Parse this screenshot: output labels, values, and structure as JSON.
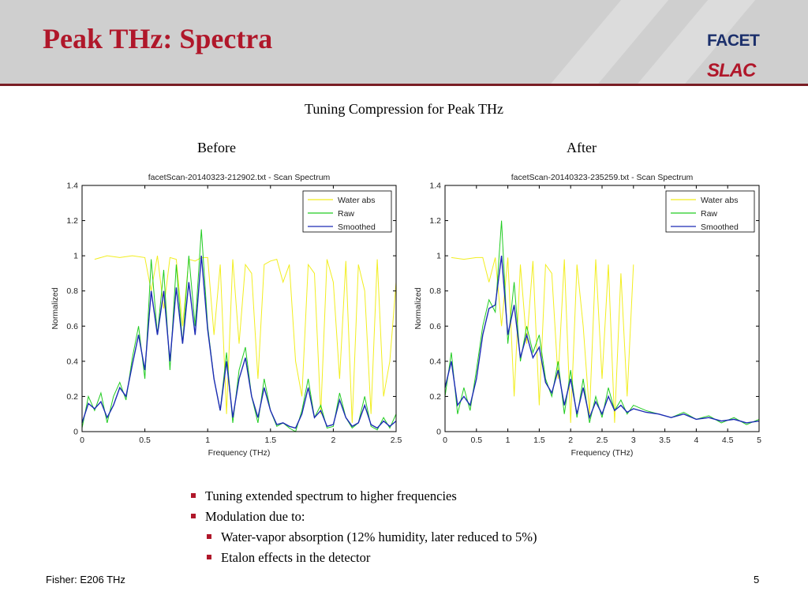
{
  "slide": {
    "title": "Peak THz: Spectra",
    "logo_top": "FACET",
    "logo_bottom": "SLAC",
    "subtitle": "Tuning Compression for Peak THz",
    "label_before": "Before",
    "label_after": "After",
    "bullets": [
      "Tuning extended spectrum to higher frequencies",
      "Modulation due to:"
    ],
    "sub_bullets": [
      "Water-vapor absorption (12% humidity, later reduced to 5%)",
      "Etalon effects in the detector"
    ],
    "footer_left": "Fisher: E206 THz",
    "page_number": "5",
    "colors": {
      "title": "#b0172a",
      "rule": "#7a1e24",
      "water": "#f2ee1f",
      "raw": "#22cc22",
      "smoothed": "#1c2bb5"
    }
  },
  "chart_data": [
    {
      "type": "line",
      "title": "facetScan-20140323-212902.txt - Scan Spectrum",
      "xlabel": "Frequency (THz)",
      "ylabel": "Normalized",
      "xlim": [
        0,
        2.5
      ],
      "ylim": [
        0,
        1.4
      ],
      "xticks": [
        0,
        0.5,
        1,
        1.5,
        2,
        2.5
      ],
      "xtick_labels": [
        "0",
        "0.5",
        "1",
        "1.5",
        "2",
        "2.5"
      ],
      "yticks": [
        0,
        0.2,
        0.4,
        0.6,
        0.8,
        1,
        1.2,
        1.4
      ],
      "ytick_labels": [
        "0",
        "0.2",
        "0.4",
        "0.6",
        "0.8",
        "1",
        "1.2",
        "1.4"
      ],
      "legend_position": "top-right",
      "series": [
        {
          "name": "Water abs",
          "x": [
            0.1,
            0.2,
            0.3,
            0.4,
            0.5,
            0.55,
            0.6,
            0.65,
            0.7,
            0.75,
            0.8,
            0.85,
            0.9,
            0.95,
            1.0,
            1.05,
            1.1,
            1.15,
            1.2,
            1.25,
            1.3,
            1.35,
            1.4,
            1.45,
            1.5,
            1.55,
            1.6,
            1.65,
            1.7,
            1.75,
            1.8,
            1.85,
            1.9,
            1.95,
            2.0,
            2.05,
            2.1,
            2.15,
            2.2,
            2.25,
            2.3,
            2.35,
            2.4,
            2.45,
            2.5
          ],
          "y": [
            0.98,
            1.0,
            0.99,
            1.0,
            0.99,
            0.8,
            1.0,
            0.7,
            0.99,
            0.98,
            0.6,
            0.98,
            0.97,
            0.99,
            0.99,
            0.55,
            0.95,
            0.1,
            0.98,
            0.5,
            0.95,
            0.9,
            0.3,
            0.95,
            0.97,
            0.98,
            0.85,
            0.95,
            0.4,
            0.2,
            0.95,
            0.9,
            0.1,
            0.98,
            0.85,
            0.3,
            0.97,
            0.05,
            0.95,
            0.8,
            0.1,
            0.98,
            0.2,
            0.4,
            0.85
          ]
        },
        {
          "name": "Raw",
          "x": [
            0.0,
            0.05,
            0.1,
            0.15,
            0.2,
            0.25,
            0.3,
            0.35,
            0.4,
            0.45,
            0.5,
            0.55,
            0.6,
            0.65,
            0.7,
            0.75,
            0.8,
            0.85,
            0.9,
            0.95,
            1.0,
            1.05,
            1.1,
            1.15,
            1.2,
            1.25,
            1.3,
            1.35,
            1.4,
            1.45,
            1.5,
            1.55,
            1.6,
            1.65,
            1.7,
            1.75,
            1.8,
            1.85,
            1.9,
            1.95,
            2.0,
            2.05,
            2.1,
            2.15,
            2.2,
            2.25,
            2.3,
            2.35,
            2.4,
            2.45,
            2.5
          ],
          "y": [
            0.02,
            0.2,
            0.12,
            0.22,
            0.05,
            0.2,
            0.28,
            0.18,
            0.42,
            0.6,
            0.3,
            0.98,
            0.55,
            0.92,
            0.35,
            0.95,
            0.5,
            1.0,
            0.6,
            1.15,
            0.6,
            0.3,
            0.12,
            0.45,
            0.05,
            0.35,
            0.48,
            0.2,
            0.05,
            0.3,
            0.12,
            0.03,
            0.05,
            0.02,
            0.0,
            0.12,
            0.3,
            0.08,
            0.15,
            0.02,
            0.03,
            0.22,
            0.08,
            0.02,
            0.05,
            0.2,
            0.03,
            0.01,
            0.08,
            0.02,
            0.1
          ]
        },
        {
          "name": "Smoothed",
          "x": [
            0.0,
            0.05,
            0.1,
            0.15,
            0.2,
            0.25,
            0.3,
            0.35,
            0.4,
            0.45,
            0.5,
            0.55,
            0.6,
            0.65,
            0.7,
            0.75,
            0.8,
            0.85,
            0.9,
            0.95,
            1.0,
            1.05,
            1.1,
            1.15,
            1.2,
            1.25,
            1.3,
            1.35,
            1.4,
            1.45,
            1.5,
            1.55,
            1.6,
            1.65,
            1.7,
            1.75,
            1.8,
            1.85,
            1.9,
            1.95,
            2.0,
            2.05,
            2.1,
            2.15,
            2.2,
            2.25,
            2.3,
            2.35,
            2.4,
            2.45,
            2.5
          ],
          "y": [
            0.05,
            0.16,
            0.13,
            0.17,
            0.08,
            0.15,
            0.25,
            0.2,
            0.38,
            0.55,
            0.35,
            0.8,
            0.55,
            0.8,
            0.4,
            0.82,
            0.5,
            0.85,
            0.55,
            1.0,
            0.58,
            0.3,
            0.12,
            0.4,
            0.08,
            0.3,
            0.42,
            0.2,
            0.08,
            0.25,
            0.12,
            0.04,
            0.05,
            0.03,
            0.02,
            0.1,
            0.25,
            0.08,
            0.12,
            0.03,
            0.04,
            0.18,
            0.08,
            0.03,
            0.05,
            0.15,
            0.04,
            0.02,
            0.06,
            0.03,
            0.06
          ]
        }
      ]
    },
    {
      "type": "line",
      "title": "facetScan-20140323-235259.txt - Scan Spectrum",
      "xlabel": "Frequency (THz)",
      "ylabel": "Normalized",
      "xlim": [
        0,
        5
      ],
      "ylim": [
        0,
        1.4
      ],
      "xticks": [
        0,
        0.5,
        1,
        1.5,
        2,
        2.5,
        3,
        3.5,
        4,
        4.5,
        5
      ],
      "xtick_labels": [
        "0",
        "0.5",
        "1",
        "1.5",
        "2",
        "2.5",
        "3",
        "3.5",
        "4",
        "4.5",
        "5"
      ],
      "yticks": [
        0,
        0.2,
        0.4,
        0.6,
        0.8,
        1,
        1.2,
        1.4
      ],
      "ytick_labels": [
        "0",
        "0.2",
        "0.4",
        "0.6",
        "0.8",
        "1",
        "1.2",
        "1.4"
      ],
      "legend_position": "top-right",
      "series": [
        {
          "name": "Water abs",
          "x": [
            0.1,
            0.3,
            0.5,
            0.6,
            0.7,
            0.8,
            0.9,
            1.0,
            1.1,
            1.2,
            1.3,
            1.4,
            1.5,
            1.6,
            1.7,
            1.8,
            1.9,
            2.0,
            2.1,
            2.2,
            2.3,
            2.4,
            2.5,
            2.6,
            2.7,
            2.8,
            2.9,
            3.0
          ],
          "y": [
            0.99,
            0.98,
            0.99,
            0.99,
            0.85,
            0.99,
            0.6,
            0.99,
            0.2,
            0.95,
            0.5,
            0.97,
            0.15,
            0.95,
            0.9,
            0.3,
            0.98,
            0.05,
            0.95,
            0.6,
            0.1,
            0.98,
            0.3,
            0.95,
            0.05,
            0.9,
            0.2,
            0.95
          ]
        },
        {
          "name": "Raw",
          "x": [
            0.0,
            0.1,
            0.2,
            0.3,
            0.4,
            0.5,
            0.6,
            0.7,
            0.8,
            0.9,
            1.0,
            1.1,
            1.2,
            1.3,
            1.4,
            1.5,
            1.6,
            1.7,
            1.8,
            1.9,
            2.0,
            2.1,
            2.2,
            2.3,
            2.4,
            2.5,
            2.6,
            2.7,
            2.8,
            2.9,
            3.0,
            3.2,
            3.4,
            3.6,
            3.8,
            4.0,
            4.2,
            4.4,
            4.6,
            4.8,
            5.0
          ],
          "y": [
            0.2,
            0.45,
            0.1,
            0.25,
            0.12,
            0.35,
            0.6,
            0.75,
            0.68,
            1.2,
            0.5,
            0.85,
            0.4,
            0.6,
            0.45,
            0.55,
            0.3,
            0.2,
            0.4,
            0.1,
            0.35,
            0.08,
            0.3,
            0.05,
            0.2,
            0.08,
            0.25,
            0.12,
            0.18,
            0.1,
            0.15,
            0.12,
            0.1,
            0.08,
            0.11,
            0.07,
            0.09,
            0.05,
            0.08,
            0.04,
            0.07
          ]
        },
        {
          "name": "Smoothed",
          "x": [
            0.0,
            0.1,
            0.2,
            0.3,
            0.4,
            0.5,
            0.6,
            0.7,
            0.8,
            0.9,
            1.0,
            1.1,
            1.2,
            1.3,
            1.4,
            1.5,
            1.6,
            1.7,
            1.8,
            1.9,
            2.0,
            2.1,
            2.2,
            2.3,
            2.4,
            2.5,
            2.6,
            2.7,
            2.8,
            2.9,
            3.0,
            3.2,
            3.4,
            3.6,
            3.8,
            4.0,
            4.2,
            4.4,
            4.6,
            4.8,
            5.0
          ],
          "y": [
            0.25,
            0.4,
            0.15,
            0.2,
            0.15,
            0.3,
            0.55,
            0.7,
            0.72,
            1.0,
            0.55,
            0.72,
            0.42,
            0.55,
            0.42,
            0.48,
            0.28,
            0.22,
            0.35,
            0.15,
            0.3,
            0.1,
            0.25,
            0.08,
            0.17,
            0.1,
            0.2,
            0.12,
            0.15,
            0.11,
            0.13,
            0.11,
            0.1,
            0.08,
            0.1,
            0.07,
            0.08,
            0.06,
            0.07,
            0.05,
            0.06
          ]
        }
      ]
    }
  ]
}
